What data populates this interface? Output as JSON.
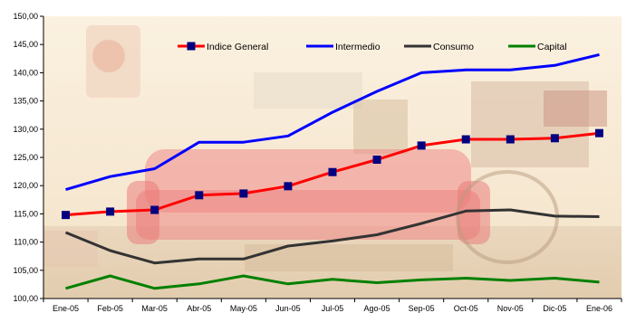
{
  "chart_data": {
    "type": "line",
    "title": "",
    "xlabel": "",
    "ylabel": "",
    "categories": [
      "Ene-05",
      "Feb-05",
      "Mar-05",
      "Abr-05",
      "May-05",
      "Jun-05",
      "Jul-05",
      "Ago-05",
      "Sep-05",
      "Oct-05",
      "Nov-05",
      "Dic-05",
      "Ene-06"
    ],
    "ylim": [
      100,
      150
    ],
    "yticks": [
      "100,00",
      "105,00",
      "110,00",
      "115,00",
      "120,00",
      "125,00",
      "130,00",
      "135,00",
      "140,00",
      "145,00",
      "150,00"
    ],
    "grid": false,
    "legend_position": "top",
    "background": "photo of a living room with a red sofa (faded)",
    "series": [
      {
        "name": "Indice General",
        "color": "#ff0000",
        "marker": "square",
        "marker_color": "#000080",
        "values": [
          114.8,
          115.4,
          115.7,
          118.3,
          118.6,
          119.9,
          122.4,
          124.6,
          127.1,
          128.2,
          128.2,
          128.4,
          129.3
        ]
      },
      {
        "name": "Intermedio",
        "color": "#0000ff",
        "values": [
          119.3,
          121.6,
          123.0,
          127.7,
          127.7,
          128.8,
          133.0,
          136.7,
          140.0,
          140.5,
          140.5,
          141.3,
          143.2
        ]
      },
      {
        "name": "Consumo",
        "color": "#333333",
        "values": [
          111.7,
          108.5,
          106.3,
          107.0,
          107.0,
          109.3,
          110.2,
          111.3,
          113.3,
          115.5,
          115.7,
          114.6,
          114.5
        ]
      },
      {
        "name": "Capital",
        "color": "#008000",
        "values": [
          101.8,
          104.0,
          101.8,
          102.6,
          104.0,
          102.6,
          103.4,
          102.8,
          103.3,
          103.6,
          103.2,
          103.6,
          102.9
        ]
      }
    ]
  }
}
